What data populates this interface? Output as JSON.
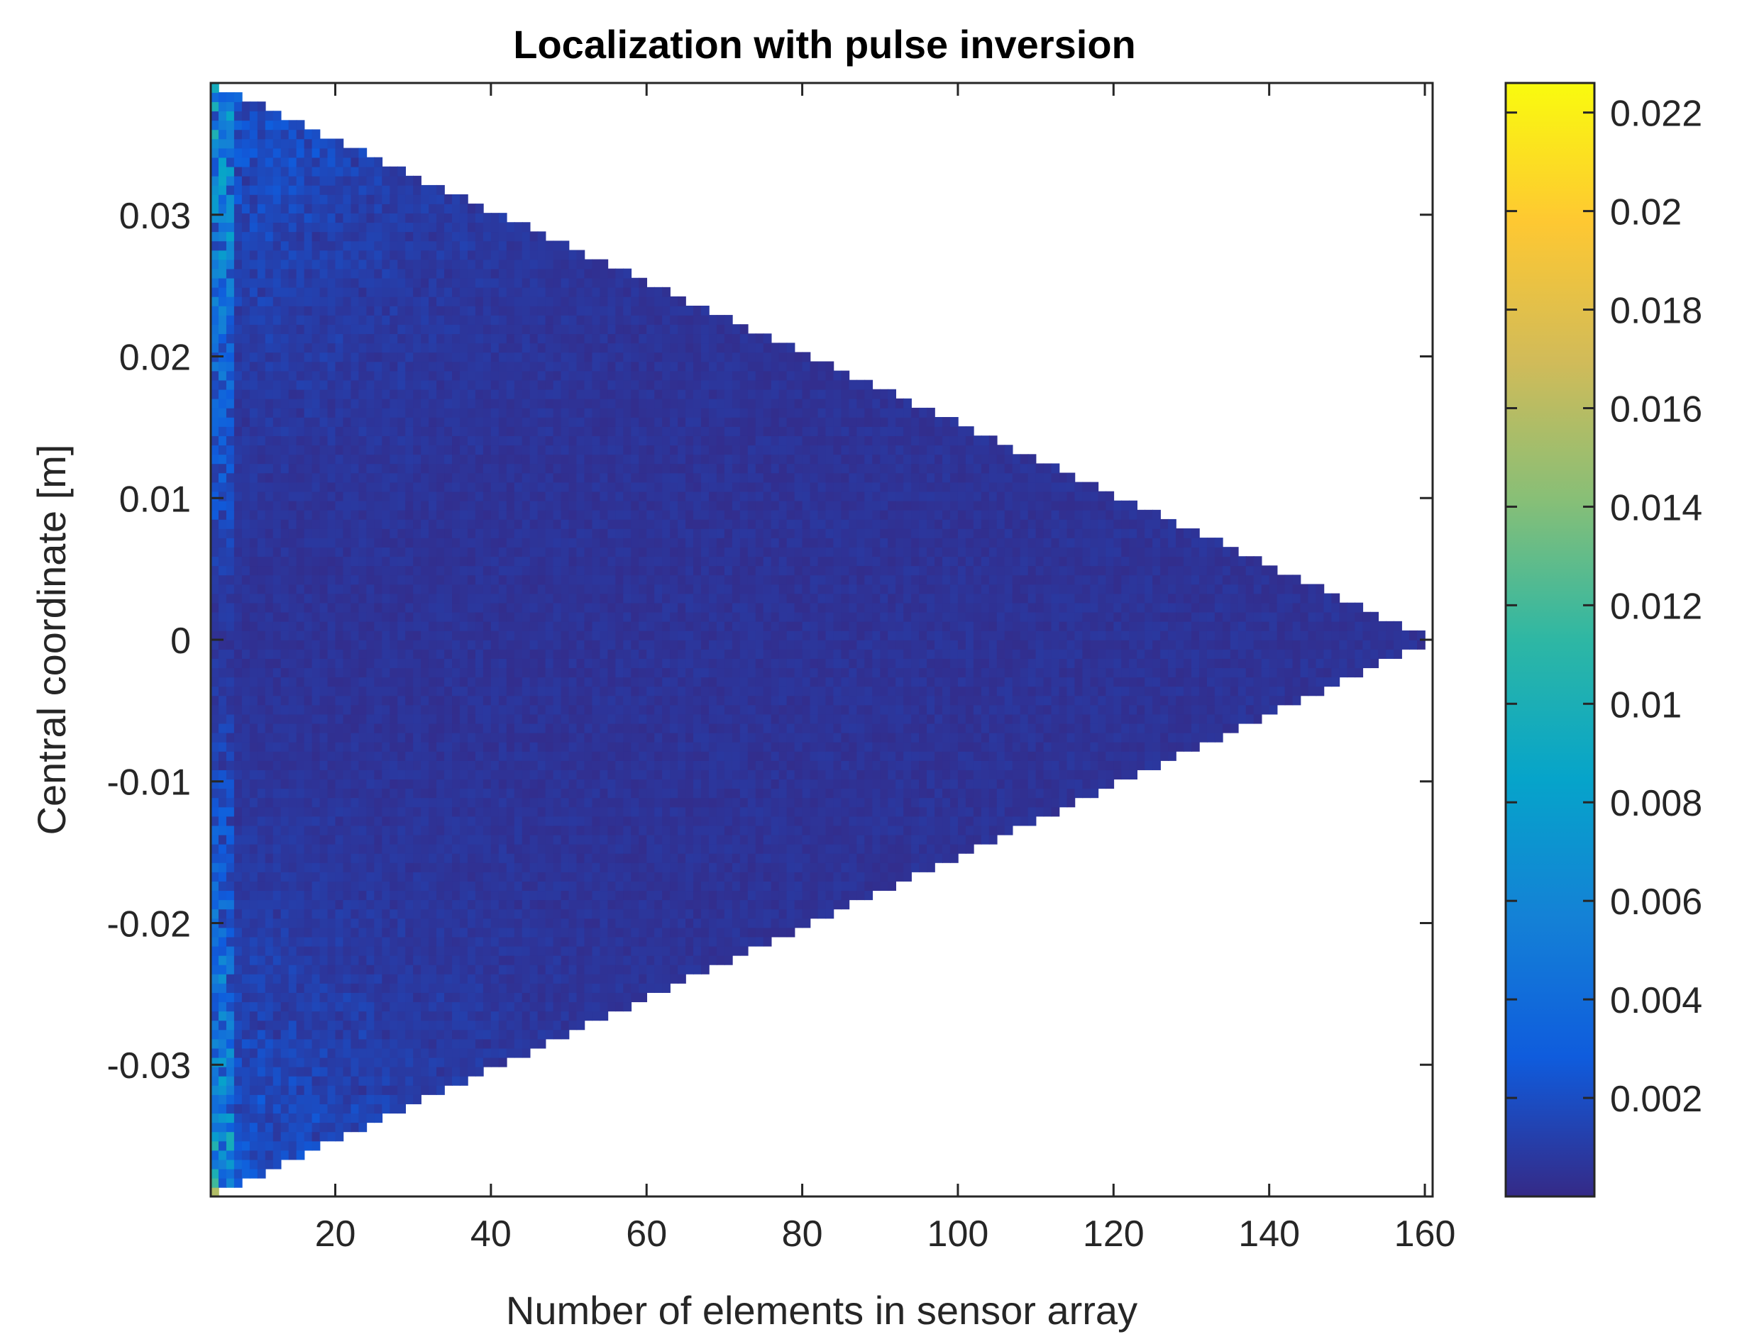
{
  "chart_data": {
    "type": "heatmap",
    "title": "Localization with pulse inversion",
    "xlabel": "Number of elements in sensor array",
    "ylabel": "Central coordinate [m]",
    "xlim": [
      4,
      161
    ],
    "ylim": [
      -0.0393,
      0.0393
    ],
    "xticks": [
      20,
      40,
      60,
      80,
      100,
      120,
      140,
      160
    ],
    "xtick_labels": [
      "20",
      "40",
      "60",
      "80",
      "100",
      "120",
      "140",
      "160"
    ],
    "yticks": [
      -0.03,
      -0.02,
      -0.01,
      0,
      0.01,
      0.02,
      0.03
    ],
    "ytick_labels": [
      "-0.03",
      "-0.02",
      "-0.01",
      "0",
      "0.01",
      "0.02",
      "0.03"
    ],
    "region": {
      "shape": "triangle",
      "x_start": 4,
      "x_end": 161,
      "y_half_width_at_start": 0.0393,
      "y_half_width_at_end": 0
    },
    "colorbar": {
      "colormap": "parula",
      "clim": [
        0,
        0.0226
      ],
      "ticks": [
        0.002,
        0.004,
        0.006,
        0.008,
        0.01,
        0.012,
        0.014,
        0.016,
        0.018,
        0.02,
        0.022
      ],
      "tick_labels": [
        "0.002",
        "0.004",
        "0.006",
        "0.008",
        "0.01",
        "0.012",
        "0.014",
        "0.016",
        "0.018",
        "0.02",
        "0.022"
      ]
    },
    "colors": {
      "background_value_color": "#352a87",
      "colormap_stops": [
        "#352a87",
        "#0f5cdd",
        "#1481d6",
        "#06a4ca",
        "#2eb7a4",
        "#87bf77",
        "#d1bb59",
        "#fec832",
        "#f9fb0e"
      ]
    },
    "grid": false
  }
}
